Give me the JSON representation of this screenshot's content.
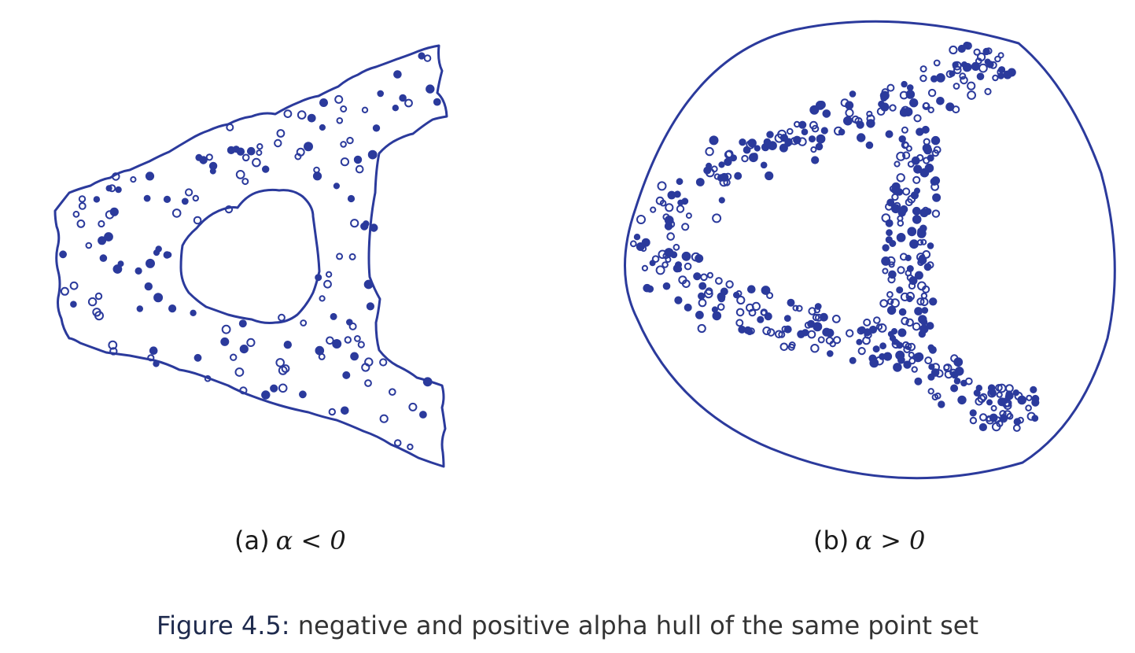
{
  "figure": {
    "label": "Figure 4.5:",
    "caption": "negative and positive alpha hull of the same point set",
    "ink_color": "#2b3a9c"
  },
  "subfigures": [
    {
      "id": "a",
      "label": "(a)",
      "math": "α < 0"
    },
    {
      "id": "b",
      "label": "(b)",
      "math": "α > 0"
    }
  ]
}
